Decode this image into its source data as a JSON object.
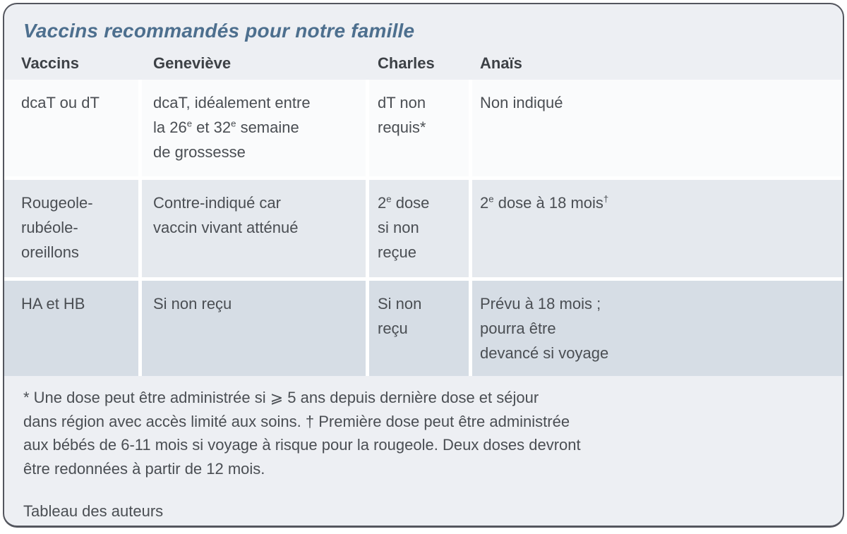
{
  "title": "Vaccins recommandés pour notre famille",
  "colors": {
    "card_bg": "#edeff3",
    "card_border": "#54565e",
    "row_light": "#fafbfc",
    "row_mid": "#e5e9ee",
    "row_dark": "#d6dde5",
    "title_color": "#4d6f8e",
    "header_text": "#3d4146",
    "cell_text": "#4a4e53"
  },
  "table": {
    "headers": [
      "Vaccins",
      "Geneviève",
      "Charles",
      "Anaïs"
    ],
    "rows": [
      {
        "cells": [
          [
            {
              "t": "dcaT ou dT"
            }
          ],
          [
            {
              "t": "dcaT, idéalement entre"
            },
            {
              "br": true
            },
            {
              "t": "la 26"
            },
            {
              "t": "e",
              "sup": true
            },
            {
              "t": " et 32"
            },
            {
              "t": "e",
              "sup": true
            },
            {
              "t": " semaine"
            },
            {
              "br": true
            },
            {
              "t": "de grossesse"
            }
          ],
          [
            {
              "t": "dT non"
            },
            {
              "br": true
            },
            {
              "t": "requis*"
            }
          ],
          [
            {
              "t": "Non indiqué"
            }
          ]
        ]
      },
      {
        "cells": [
          [
            {
              "t": "Rougeole-"
            },
            {
              "br": true
            },
            {
              "t": "rubéole-"
            },
            {
              "br": true
            },
            {
              "t": "oreillons"
            }
          ],
          [
            {
              "t": "Contre-indiqué car"
            },
            {
              "br": true
            },
            {
              "t": "vaccin vivant atténué"
            }
          ],
          [
            {
              "t": "2"
            },
            {
              "t": "e",
              "sup": true
            },
            {
              "t": " dose"
            },
            {
              "br": true
            },
            {
              "t": "si non"
            },
            {
              "br": true
            },
            {
              "t": "reçue"
            }
          ],
          [
            {
              "t": "2"
            },
            {
              "t": "e",
              "sup": true
            },
            {
              "t": " dose à 18 mois"
            },
            {
              "t": "†",
              "sup": true
            }
          ]
        ]
      },
      {
        "cells": [
          [
            {
              "t": "HA et HB"
            }
          ],
          [
            {
              "t": "Si non reçu"
            }
          ],
          [
            {
              "t": "Si non"
            },
            {
              "br": true
            },
            {
              "t": "reçu"
            }
          ],
          [
            {
              "t": "Prévu à 18 mois ;"
            },
            {
              "br": true
            },
            {
              "t": "pourra être"
            },
            {
              "br": true
            },
            {
              "t": "devancé si voyage"
            }
          ]
        ]
      }
    ]
  },
  "footnote": [
    {
      "t": "* Une dose peut être administrée si ⩾ 5 ans depuis dernière dose et séjour"
    },
    {
      "br": true
    },
    {
      "t": "dans région avec accès limité aux soins. † Première dose peut être administrée"
    },
    {
      "br": true
    },
    {
      "t": "aux bébés de 6-11 mois si voyage à risque pour la rougeole. Deux doses devront"
    },
    {
      "br": true
    },
    {
      "t": "être redonnées à partir de 12 mois."
    }
  ],
  "credit": "Tableau des auteurs"
}
